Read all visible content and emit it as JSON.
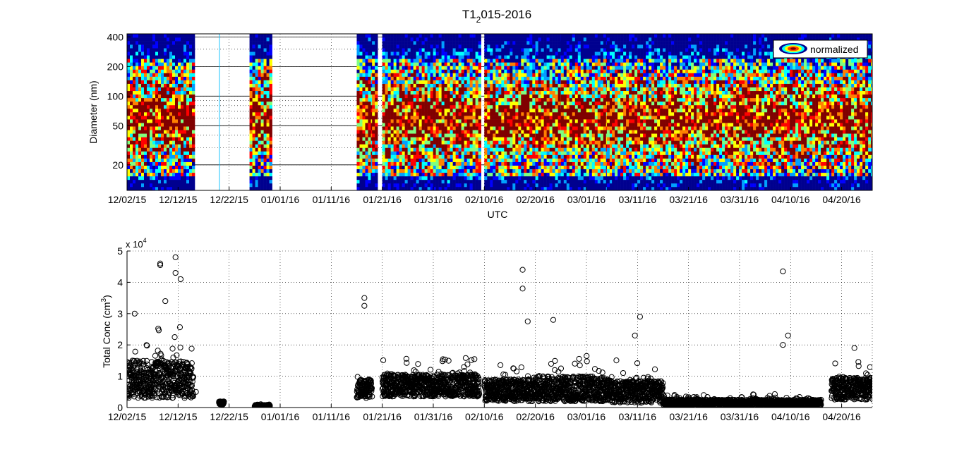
{
  "figure": {
    "title_main": "T1",
    "title_sub": "2",
    "title_rest": "015-2016"
  },
  "chart_data": [
    {
      "type": "heatmap",
      "title": "T1 2015-2016",
      "xlabel": "UTC",
      "ylabel": "Diameter (nm)",
      "yscale": "log",
      "ylim": [
        11,
        430
      ],
      "yticks": [
        20,
        50,
        100,
        200,
        400
      ],
      "yticklabels": [
        "20",
        "50",
        "100",
        "200",
        "400"
      ],
      "xlim": [
        "2015-12-02",
        "2016-04-26"
      ],
      "xticklabels": [
        "12/02/15",
        "12/12/15",
        "12/22/15",
        "01/01/16",
        "01/11/16",
        "01/21/16",
        "01/31/16",
        "02/10/16",
        "02/20/16",
        "03/01/16",
        "03/11/16",
        "03/21/16",
        "03/31/16",
        "04/10/16",
        "04/20/16"
      ],
      "legend": {
        "label": "normalized",
        "placement": "top-right"
      },
      "colormap": [
        "#00008f",
        "#0000ff",
        "#00a0ff",
        "#00ffff",
        "#7fff7f",
        "#ffff00",
        "#ff8000",
        "#ff0000",
        "#800000"
      ],
      "data_segments": [
        {
          "start": "2015-12-02",
          "end": "2015-12-14",
          "fill": "dense"
        },
        {
          "start": "2015-12-20",
          "end": "2015-12-20",
          "fill": "trace"
        },
        {
          "start": "2015-12-26",
          "end": "2015-12-29",
          "fill": "dense"
        },
        {
          "start": "2016-01-16",
          "end": "2016-01-18",
          "fill": "dense"
        },
        {
          "start": "2016-01-19",
          "end": "2016-01-19",
          "fill": "dense"
        },
        {
          "start": "2016-01-21",
          "end": "2016-02-08",
          "fill": "dense"
        },
        {
          "start": "2016-02-10",
          "end": "2016-02-19",
          "fill": "dense"
        },
        {
          "start": "2016-02-20",
          "end": "2016-02-24",
          "fill": "dense"
        },
        {
          "start": "2016-02-25",
          "end": "2016-03-04",
          "fill": "dense"
        },
        {
          "start": "2016-03-05",
          "end": "2016-03-05",
          "fill": "dense"
        },
        {
          "start": "2016-03-06",
          "end": "2016-04-17",
          "fill": "dense"
        },
        {
          "start": "2016-04-18",
          "end": "2016-04-26",
          "fill": "dense"
        }
      ]
    },
    {
      "type": "scatter",
      "xlabel": "",
      "ylabel": "Total Conc (cm3)",
      "ylabel_main": "Total Conc (cm",
      "ylabel_sup": "3",
      "ylabel_end": ")",
      "y_multiplier": "x 10",
      "y_multiplier_exp": "4",
      "ylim": [
        0,
        5
      ],
      "yticks": [
        0,
        1,
        2,
        3,
        4,
        5
      ],
      "yticklabels": [
        "0",
        "1",
        "2",
        "3",
        "4",
        "5"
      ],
      "xlim": [
        "2015-12-02",
        "2016-04-26"
      ],
      "xticklabels": [
        "12/02/15",
        "12/12/15",
        "12/22/15",
        "01/01/16",
        "01/11/16",
        "01/21/16",
        "01/31/16",
        "02/10/16",
        "02/20/16",
        "03/01/16",
        "03/11/16",
        "03/21/16",
        "03/31/16",
        "04/10/16",
        "04/20/16"
      ],
      "marker": "open-circle",
      "grid": true,
      "segments": [
        {
          "start": "2015-12-02",
          "end": "2015-12-14",
          "base": 0.9,
          "spread": 0.6
        },
        {
          "start": "2015-12-20",
          "end": "2015-12-20",
          "base": 0.15,
          "spread": 0.05
        },
        {
          "start": "2015-12-27",
          "end": "2015-12-29",
          "base": 0.05,
          "spread": 0.03
        },
        {
          "start": "2016-01-16",
          "end": "2016-01-18",
          "base": 0.6,
          "spread": 0.3
        },
        {
          "start": "2016-01-21",
          "end": "2016-02-08",
          "base": 0.7,
          "spread": 0.35
        },
        {
          "start": "2016-02-10",
          "end": "2016-02-19",
          "base": 0.55,
          "spread": 0.35
        },
        {
          "start": "2016-02-20",
          "end": "2016-03-05",
          "base": 0.6,
          "spread": 0.4
        },
        {
          "start": "2016-03-06",
          "end": "2016-03-15",
          "base": 0.5,
          "spread": 0.35
        },
        {
          "start": "2016-03-16",
          "end": "2016-04-15",
          "base": 0.15,
          "spread": 0.1
        },
        {
          "start": "2016-04-18",
          "end": "2016-04-26",
          "base": 0.6,
          "spread": 0.35
        }
      ],
      "highlights": [
        {
          "x": "2015-12-03",
          "y": 3.0
        },
        {
          "x": "2015-12-08",
          "y": 4.55
        },
        {
          "x": "2015-12-08",
          "y": 4.6
        },
        {
          "x": "2015-12-09",
          "y": 3.4
        },
        {
          "x": "2015-12-11",
          "y": 4.8
        },
        {
          "x": "2015-12-11",
          "y": 4.3
        },
        {
          "x": "2015-12-12",
          "y": 4.1
        },
        {
          "x": "2016-01-17",
          "y": 3.5
        },
        {
          "x": "2016-01-17",
          "y": 3.25
        },
        {
          "x": "2016-02-17",
          "y": 4.4
        },
        {
          "x": "2016-02-17",
          "y": 3.8
        },
        {
          "x": "2016-02-18",
          "y": 2.75
        },
        {
          "x": "2016-02-23",
          "y": 2.8
        },
        {
          "x": "2016-03-10",
          "y": 2.3
        },
        {
          "x": "2016-03-11",
          "y": 2.9
        },
        {
          "x": "2016-04-08",
          "y": 4.35
        },
        {
          "x": "2016-04-08",
          "y": 2.0
        },
        {
          "x": "2016-04-09",
          "y": 2.3
        },
        {
          "x": "2016-04-22",
          "y": 1.9
        },
        {
          "x": "2015-12-15",
          "y": 0.5
        }
      ]
    }
  ]
}
